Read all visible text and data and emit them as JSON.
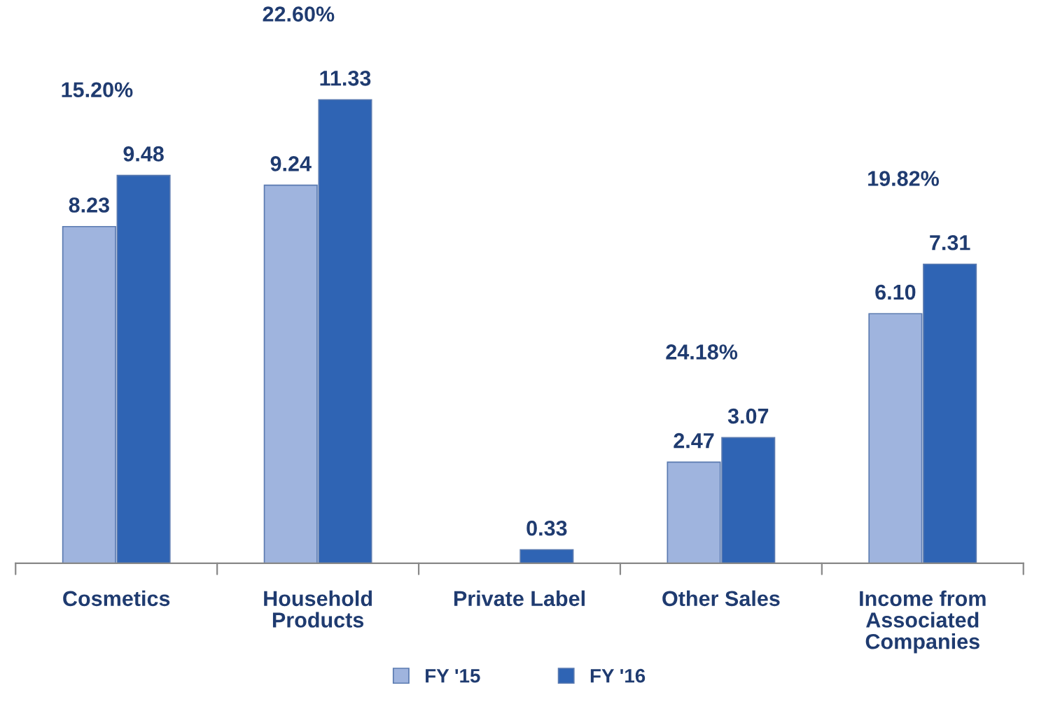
{
  "chart_data": {
    "type": "bar",
    "categories": [
      "Cosmetics",
      "Household Products",
      "Private Label",
      "Other Sales",
      "Income from Associated Companies"
    ],
    "series": [
      {
        "name": "FY '15",
        "color": "#9fb4de",
        "values": [
          8.23,
          9.24,
          null,
          2.47,
          6.1
        ],
        "value_labels": [
          "8.23",
          "9.24",
          null,
          "2.47",
          "6.10"
        ]
      },
      {
        "name": "FY '16",
        "color": "#2f64b4",
        "values": [
          9.48,
          11.33,
          0.33,
          3.07,
          7.31
        ],
        "value_labels": [
          "9.48",
          "11.33",
          "0.33",
          "3.07",
          "7.31"
        ]
      }
    ],
    "legend": "bottom",
    "grid": false,
    "annotations": [
      "15.20%",
      "22.60%",
      "24.18%",
      "19.82%"
    ]
  }
}
